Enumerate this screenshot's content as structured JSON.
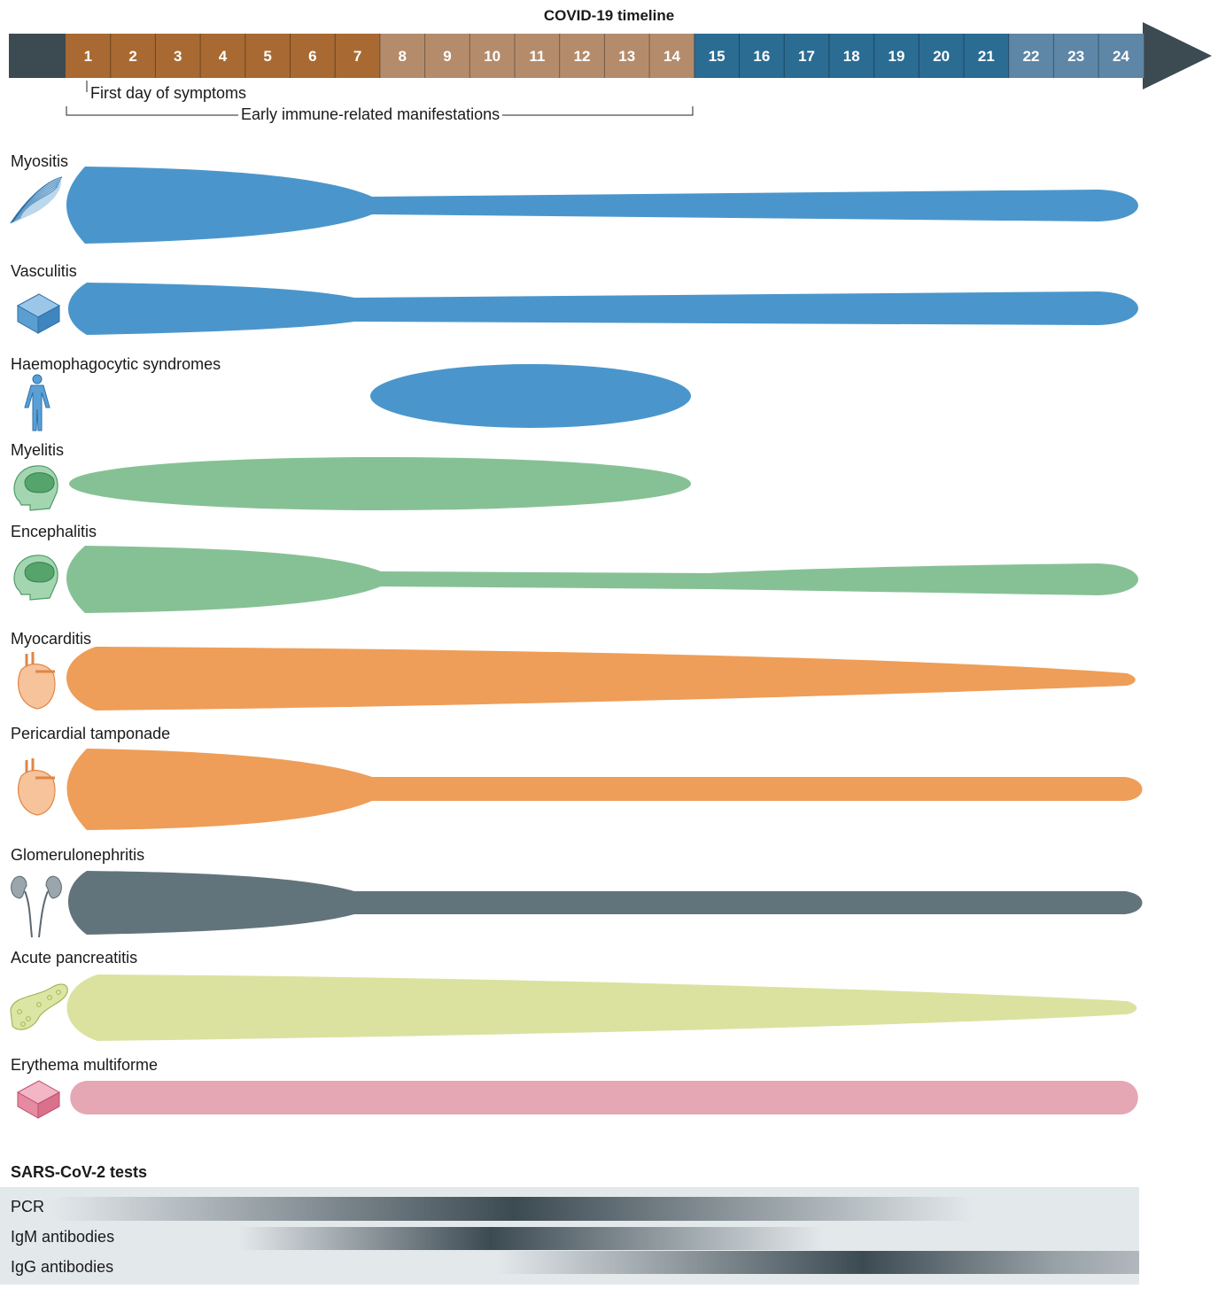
{
  "timeline": {
    "title": "COVID-19 timeline",
    "days": [
      "1",
      "2",
      "3",
      "4",
      "5",
      "6",
      "7",
      "8",
      "9",
      "10",
      "11",
      "12",
      "13",
      "14",
      "15",
      "16",
      "17",
      "18",
      "19",
      "20",
      "21",
      "22",
      "23",
      "24"
    ],
    "first_day_label": "First day of symptoms",
    "early_label": "Early immune-related manifestations",
    "colors": {
      "pre": "#3c4a52",
      "early": "#a86a32",
      "mid": "#b48c6c",
      "late": "#2b6c93",
      "latest": "#5e86a6",
      "arrow": "#3c4a52"
    }
  },
  "conditions": [
    {
      "name": "Myositis",
      "icon": "muscle-icon",
      "color": "#4a96cc"
    },
    {
      "name": "Vasculitis",
      "icon": "vessel-cube-icon",
      "color": "#4a96cc"
    },
    {
      "name": "Haemophagocytic syndromes",
      "icon": "human-body-icon",
      "color": "#4a96cc"
    },
    {
      "name": "Myelitis",
      "icon": "head-brain-icon",
      "color": "#86c195"
    },
    {
      "name": "Encephalitis",
      "icon": "head-brain-icon",
      "color": "#86c195"
    },
    {
      "name": "Myocarditis",
      "icon": "heart-icon",
      "color": "#ee9e58"
    },
    {
      "name": "Pericardial tamponade",
      "icon": "heart-icon",
      "color": "#ee9e58"
    },
    {
      "name": "Glomerulonephritis",
      "icon": "kidney-icon",
      "color": "#62747b"
    },
    {
      "name": "Acute pancreatitis",
      "icon": "pancreas-icon",
      "color": "#dbe2a0"
    },
    {
      "name": "Erythema multiforme",
      "icon": "skin-cube-icon",
      "color": "#e5a7b4"
    }
  ],
  "tests": {
    "title": "SARS-CoV-2 tests",
    "background": "#e3e8eb",
    "dark": "#3c4a52",
    "rows": [
      {
        "name": "PCR"
      },
      {
        "name": "IgM antibodies"
      },
      {
        "name": "IgG antibodies"
      }
    ]
  }
}
